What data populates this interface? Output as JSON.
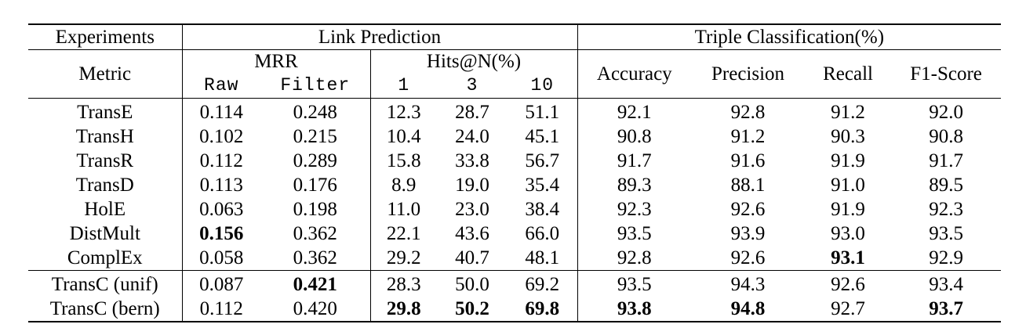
{
  "table": {
    "header": {
      "experiments": "Experiments",
      "link_prediction": "Link Prediction",
      "triple_classification": "Triple Classification(%)",
      "metric": "Metric",
      "mrr": "MRR",
      "hits": "Hits@N(%)",
      "raw": "Raw",
      "filter": "Filter",
      "h1": "1",
      "h3": "3",
      "h10": "10",
      "accuracy": "Accuracy",
      "precision": "Precision",
      "recall": "Recall",
      "f1": "F1-Score"
    },
    "rows": [
      {
        "name": "TransE",
        "raw": "0.114",
        "filter": "0.248",
        "h1": "12.3",
        "h3": "28.7",
        "h10": "51.1",
        "acc": "92.1",
        "prec": "92.8",
        "rec": "91.2",
        "f1": "92.0"
      },
      {
        "name": "TransH",
        "raw": "0.102",
        "filter": "0.215",
        "h1": "10.4",
        "h3": "24.0",
        "h10": "45.1",
        "acc": "90.8",
        "prec": "91.2",
        "rec": "90.3",
        "f1": "90.8"
      },
      {
        "name": "TransR",
        "raw": "0.112",
        "filter": "0.289",
        "h1": "15.8",
        "h3": "33.8",
        "h10": "56.7",
        "acc": "91.7",
        "prec": "91.6",
        "rec": "91.9",
        "f1": "91.7"
      },
      {
        "name": "TransD",
        "raw": "0.113",
        "filter": "0.176",
        "h1": "8.9",
        "h3": "19.0",
        "h10": "35.4",
        "acc": "89.3",
        "prec": "88.1",
        "rec": "91.0",
        "f1": "89.5"
      },
      {
        "name": "HolE",
        "raw": "0.063",
        "filter": "0.198",
        "h1": "11.0",
        "h3": "23.0",
        "h10": "38.4",
        "acc": "92.3",
        "prec": "92.6",
        "rec": "91.9",
        "f1": "92.3"
      },
      {
        "name": "DistMult",
        "raw": "0.156",
        "filter": "0.362",
        "h1": "22.1",
        "h3": "43.6",
        "h10": "66.0",
        "acc": "93.5",
        "prec": "93.9",
        "rec": "93.0",
        "f1": "93.5"
      },
      {
        "name": "ComplEx",
        "raw": "0.058",
        "filter": "0.362",
        "h1": "29.2",
        "h3": "40.7",
        "h10": "48.1",
        "acc": "92.8",
        "prec": "92.6",
        "rec": "93.1",
        "f1": "92.9"
      },
      {
        "name": "TransC (unif)",
        "raw": "0.087",
        "filter": "0.421",
        "h1": "28.3",
        "h3": "50.0",
        "h10": "69.2",
        "acc": "93.5",
        "prec": "94.3",
        "rec": "92.6",
        "f1": "93.4"
      },
      {
        "name": "TransC (bern)",
        "raw": "0.112",
        "filter": "0.420",
        "h1": "29.8",
        "h3": "50.2",
        "h10": "69.8",
        "acc": "93.8",
        "prec": "94.8",
        "rec": "92.7",
        "f1": "93.7"
      }
    ]
  }
}
